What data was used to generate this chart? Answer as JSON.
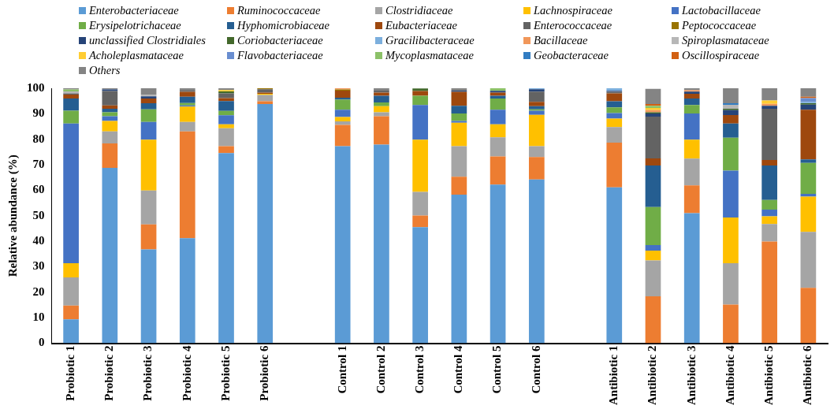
{
  "chart_data": {
    "type": "bar",
    "stacked": true,
    "ylabel": "Relative abundance (%)",
    "ylim": [
      0,
      100
    ],
    "yticks": [
      0,
      10,
      20,
      30,
      40,
      50,
      60,
      70,
      80,
      90,
      100
    ],
    "grid": false,
    "legend": "top",
    "categories": [
      "Probiotic 1",
      "Probiotic 2",
      "Probiotic 3",
      "Probiotic 4",
      "Probiotic 5",
      "Probiotic 6",
      null,
      "Control 1",
      "Control 2",
      "Control 3",
      "Control 4",
      "Control 5",
      "Control 6",
      null,
      "Antibiotic 1",
      "Antibiotic 2",
      "Antibiotic 3",
      "Antibiotic 4",
      "Antibiotic 5",
      "Antibiotic 6"
    ],
    "series": [
      {
        "name": "Enterobacteriaceae",
        "color": "#5b9bd5",
        "values": [
          9.4,
          68.8,
          36.8,
          41.2,
          74.6,
          93.8,
          null,
          77.3,
          77.9,
          45.5,
          58.3,
          62.2,
          64.2,
          null,
          61.1,
          0,
          51,
          0,
          0,
          0
        ]
      },
      {
        "name": "Ruminococcaceae",
        "color": "#ed7d31",
        "values": [
          5.4,
          9.6,
          9.8,
          41.9,
          2.7,
          1.1,
          null,
          8.3,
          11.1,
          4.6,
          7,
          11.1,
          8.8,
          null,
          17.6,
          18.4,
          10.9,
          15.2,
          39.9,
          21.7
        ]
      },
      {
        "name": "Clostridiaceae",
        "color": "#a5a5a5",
        "values": [
          11,
          4.7,
          13.3,
          3.7,
          7,
          2.5,
          null,
          1.4,
          1.6,
          9.3,
          12,
          7.5,
          4.3,
          null,
          6.1,
          14.1,
          10.5,
          16.2,
          6.9,
          22
        ]
      },
      {
        "name": "Lachnospiraceae",
        "color": "#ffc000",
        "values": [
          5.6,
          4.1,
          19.9,
          6,
          1.6,
          0.4,
          null,
          1.7,
          2.4,
          20.4,
          9.2,
          5.1,
          12.3,
          null,
          3.3,
          3.8,
          7.4,
          17.9,
          3,
          13.8
        ]
      },
      {
        "name": "Lactobacillaceae",
        "color": "#4472c4",
        "values": [
          54.8,
          1.8,
          7,
          0.5,
          3.5,
          0,
          null,
          2.9,
          0,
          13.6,
          0.7,
          5.7,
          1.6,
          null,
          2.2,
          2.2,
          10.3,
          18.4,
          2.6,
          1.1
        ]
      },
      {
        "name": "Erysipelotrichaceae",
        "color": "#70ad47",
        "values": [
          5,
          1.6,
          4.9,
          0.9,
          1.7,
          0,
          null,
          3.9,
          1.4,
          3.7,
          2.9,
          4.4,
          0.5,
          null,
          2.2,
          14.9,
          3.3,
          12.9,
          3.8,
          12.1
        ]
      },
      {
        "name": "Hyphomicrobiaceae",
        "color": "#255e91",
        "values": [
          4.8,
          1.4,
          2.4,
          2.5,
          3.9,
          0,
          null,
          0.8,
          2.7,
          0,
          3,
          1.1,
          1.3,
          null,
          2.4,
          16.3,
          2.6,
          5.6,
          13.5,
          1.4
        ]
      },
      {
        "name": "Eubacteriaceae",
        "color": "#9e480e",
        "values": [
          1.5,
          1.3,
          1.9,
          1.9,
          1.1,
          0.5,
          null,
          2.8,
          1.2,
          1.8,
          5.5,
          1.2,
          1.7,
          null,
          3.1,
          2.8,
          1.8,
          3.3,
          2.2,
          19.5
        ]
      },
      {
        "name": "Enterococcaceae",
        "color": "#636363",
        "values": [
          0.5,
          5.6,
          0,
          0.7,
          1.9,
          1.3,
          null,
          0,
          0.8,
          0,
          0,
          0,
          4,
          null,
          0.6,
          16.4,
          0,
          0,
          20.1,
          0
        ]
      },
      {
        "name": "Peptococcaceae",
        "color": "#997300",
        "values": [
          0,
          0,
          0,
          0,
          0,
          0.4,
          null,
          0.4,
          0,
          0,
          0,
          0,
          0,
          null,
          0,
          0,
          0,
          0,
          0,
          0
        ]
      },
      {
        "name": "unclassified Clostridiales",
        "color": "#264478",
        "values": [
          0,
          0.6,
          0.8,
          0,
          0,
          0,
          null,
          0,
          0,
          0,
          0.5,
          0.7,
          0.9,
          null,
          0.4,
          1.2,
          0.9,
          1.9,
          1.1,
          2
        ]
      },
      {
        "name": "Coriobacteriaceae",
        "color": "#43682b",
        "values": [
          0,
          0,
          0,
          0,
          0.8,
          0,
          null,
          0,
          0,
          1,
          0,
          0,
          0,
          null,
          0,
          0.5,
          0,
          0.6,
          0,
          0.5
        ]
      },
      {
        "name": "Gracilibacteraceae",
        "color": "#7cafdd",
        "values": [
          0,
          0,
          0,
          0,
          0,
          0,
          null,
          0,
          0,
          0,
          0,
          0,
          0.4,
          null,
          1,
          0,
          0,
          0,
          0,
          0.5
        ]
      },
      {
        "name": "Bacillaceae",
        "color": "#f1975a",
        "values": [
          0,
          0,
          0,
          0,
          0,
          0,
          null,
          0.5,
          0,
          0,
          0,
          0,
          0,
          null,
          0,
          0.8,
          0.5,
          0,
          0.8,
          0
        ]
      },
      {
        "name": "Spiroplasmataceae",
        "color": "#b7b7b7",
        "values": [
          0.8,
          0,
          0.6,
          0,
          0,
          0,
          null,
          0,
          0,
          0,
          0,
          0,
          0,
          null,
          0,
          0,
          0,
          1.5,
          0,
          0
        ]
      },
      {
        "name": "Acholeplasmataceae",
        "color": "#ffcd33",
        "values": [
          0,
          0,
          0,
          0,
          0.5,
          0,
          null,
          0,
          0,
          0,
          0,
          0,
          0,
          null,
          0,
          0.9,
          0,
          0,
          1.3,
          0
        ]
      },
      {
        "name": "Flavobacteriaceae",
        "color": "#698ed0",
        "values": [
          0,
          0,
          0,
          0,
          0,
          0,
          null,
          0,
          0,
          0,
          0,
          0,
          0,
          null,
          0,
          0,
          0,
          0,
          0,
          1.5
        ]
      },
      {
        "name": "Mycoplasmataceae",
        "color": "#8cc168",
        "values": [
          0.7,
          0,
          0,
          0,
          0,
          0,
          null,
          0,
          0,
          0,
          0,
          1,
          0,
          null,
          0,
          0.8,
          0,
          0,
          0,
          0
        ]
      },
      {
        "name": "Geobacteraceae",
        "color": "#327dc2",
        "values": [
          0,
          0,
          0,
          0,
          0,
          0,
          null,
          0,
          0,
          0,
          0,
          0,
          0,
          null,
          0,
          0,
          0,
          0.6,
          0,
          0
        ]
      },
      {
        "name": "Oscillospiraceae",
        "color": "#d26012",
        "values": [
          0,
          0,
          0,
          0,
          0,
          0,
          null,
          0,
          0,
          0,
          0,
          0,
          0,
          null,
          0,
          0.7,
          0,
          0,
          0,
          0.6
        ]
      },
      {
        "name": "Others",
        "color": "#848484",
        "values": [
          0.5,
          0.5,
          2.6,
          0.7,
          0.7,
          0,
          null,
          0,
          0.9,
          0,
          0.9,
          0,
          0,
          null,
          0,
          6,
          0.8,
          5.9,
          4.8,
          3.3
        ]
      }
    ]
  }
}
